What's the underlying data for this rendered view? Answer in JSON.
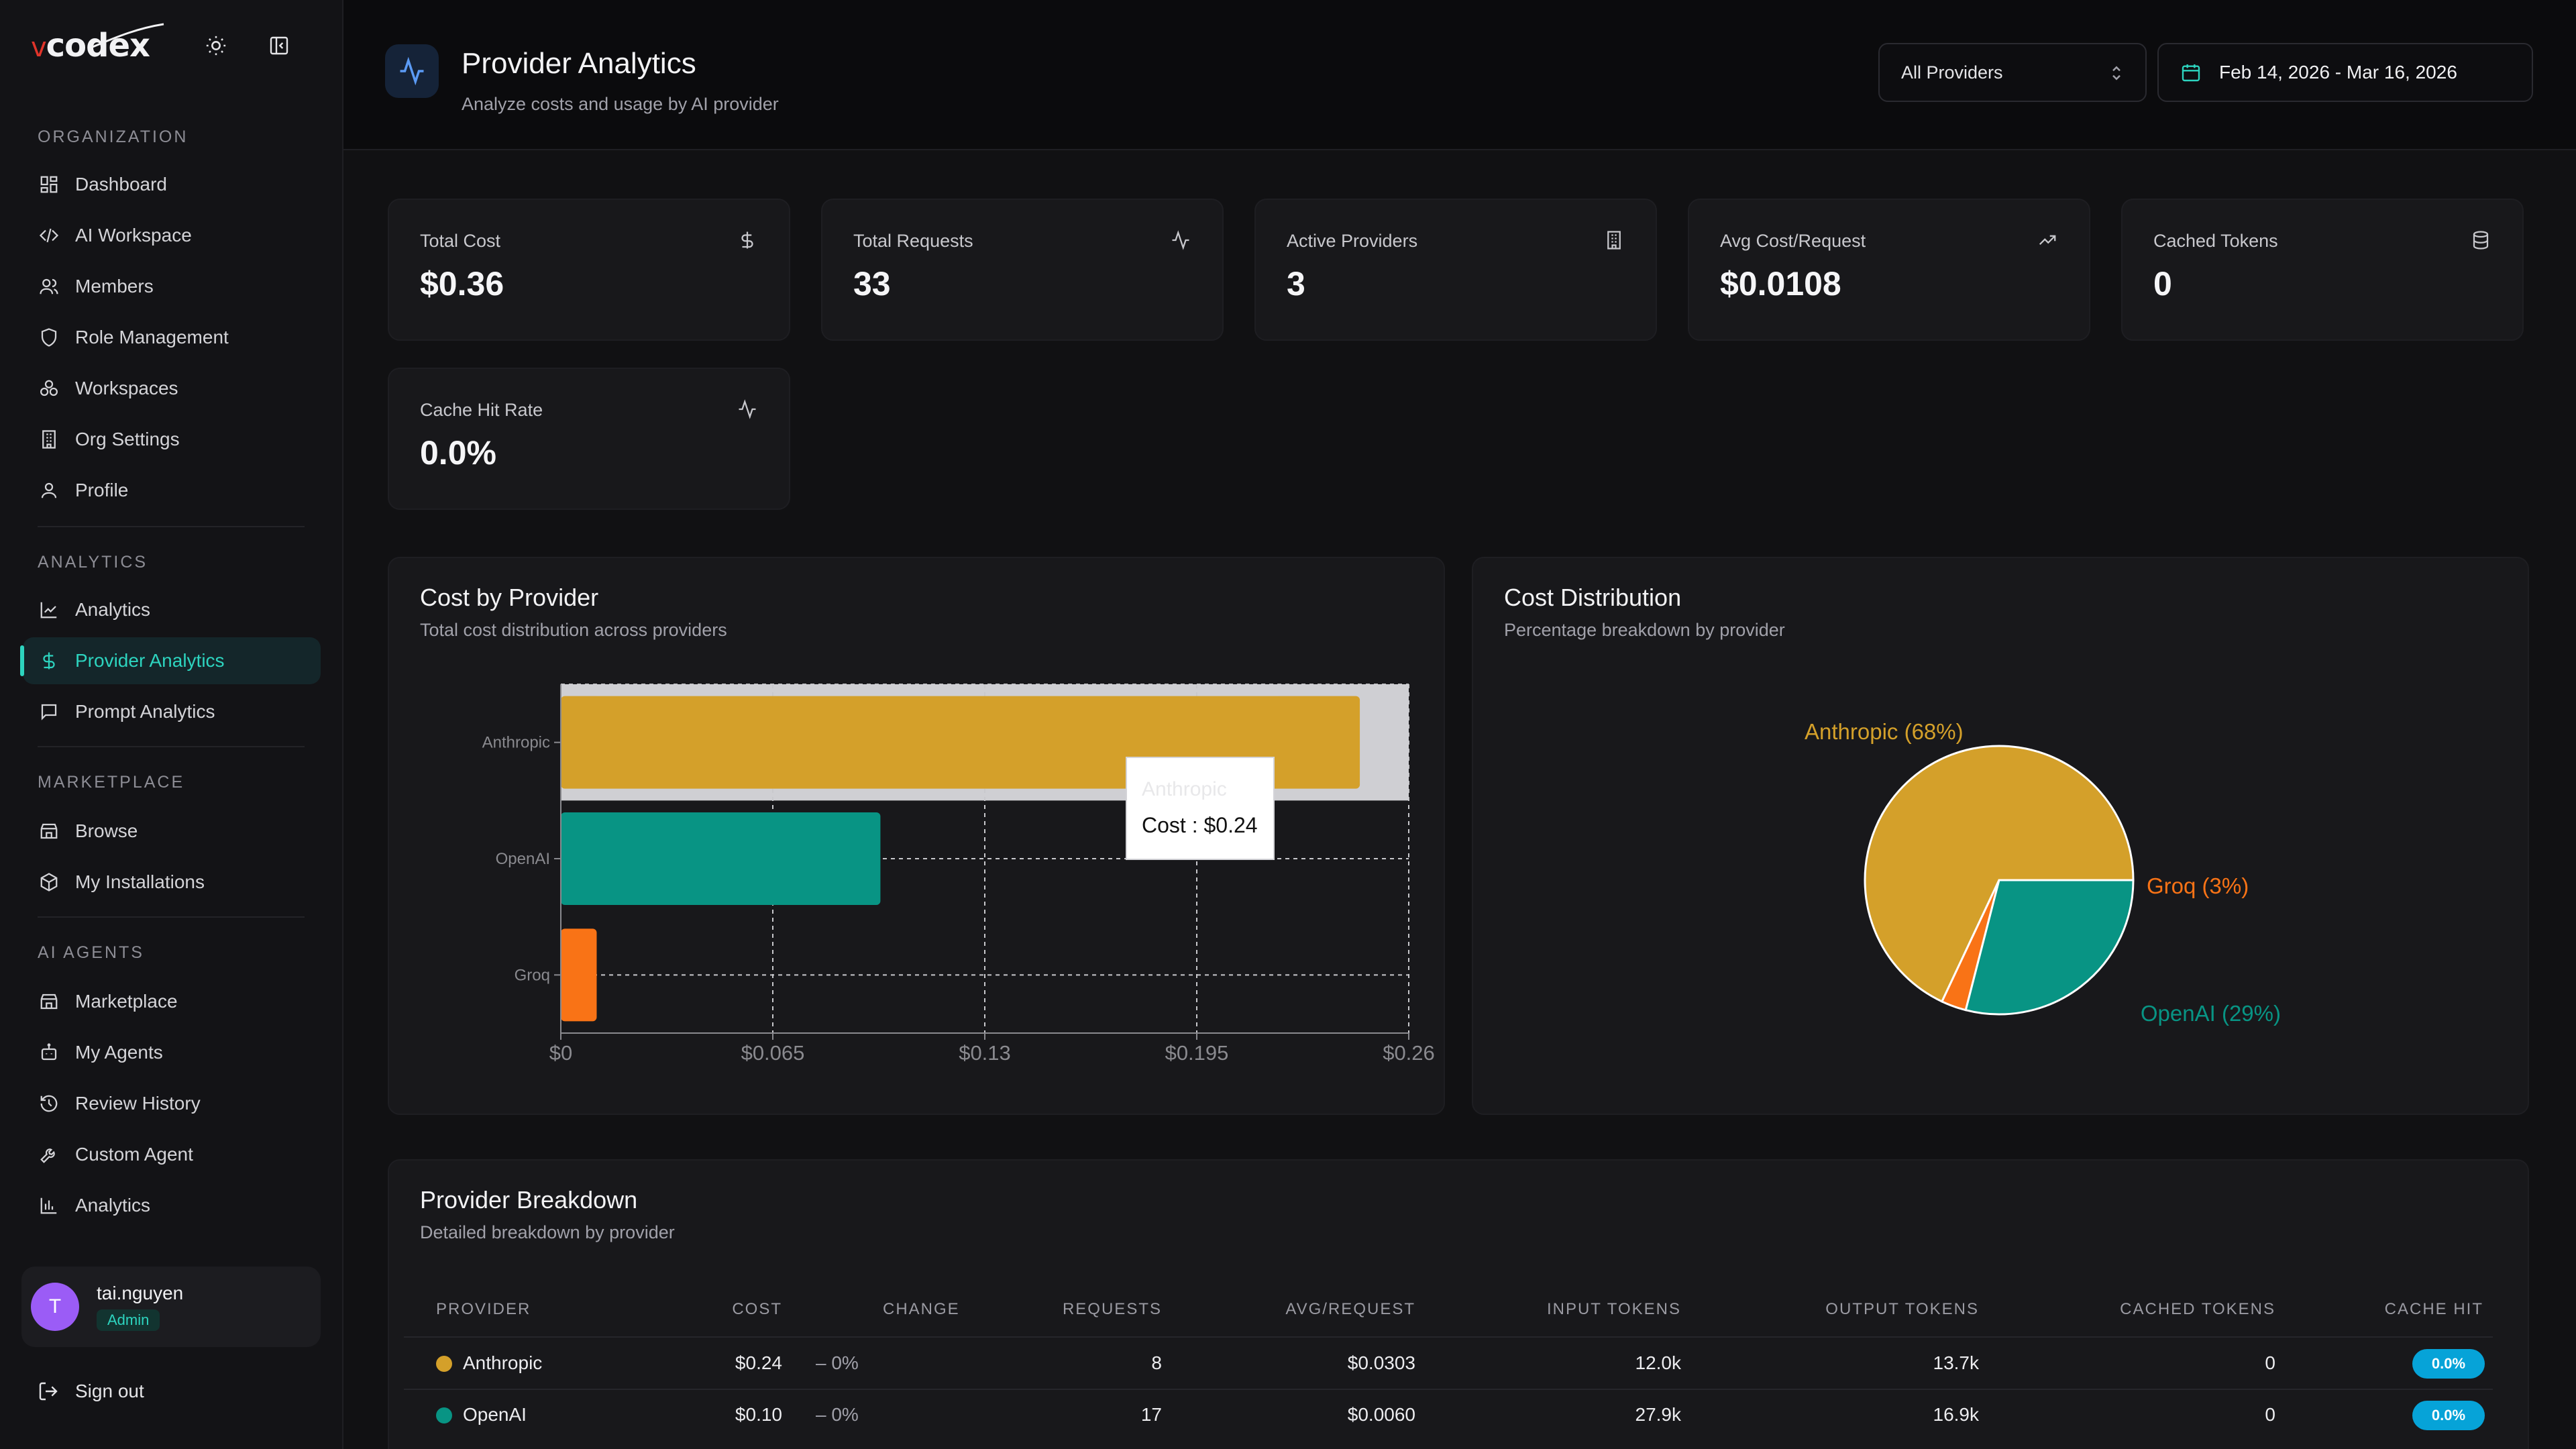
{
  "app": {
    "brand": "codex",
    "brand_prefix": "v"
  },
  "sidebar": {
    "sections": [
      {
        "label": "ORGANIZATION"
      },
      {
        "label": "ANALYTICS"
      },
      {
        "label": "MARKETPLACE"
      },
      {
        "label": "AI AGENTS"
      }
    ],
    "items": [
      {
        "label": "Dashboard",
        "icon": "dashboard-icon"
      },
      {
        "label": "AI Workspace",
        "icon": "code-icon"
      },
      {
        "label": "Members",
        "icon": "users-icon"
      },
      {
        "label": "Role Management",
        "icon": "shield-icon"
      },
      {
        "label": "Workspaces",
        "icon": "workspaces-icon"
      },
      {
        "label": "Org Settings",
        "icon": "building-icon"
      },
      {
        "label": "Profile",
        "icon": "user-icon"
      },
      {
        "label": "Analytics",
        "icon": "line-chart-icon"
      },
      {
        "label": "Provider Analytics",
        "icon": "dollar-icon",
        "active": true
      },
      {
        "label": "Prompt Analytics",
        "icon": "message-icon"
      },
      {
        "label": "Browse",
        "icon": "store-icon"
      },
      {
        "label": "My Installations",
        "icon": "package-icon"
      },
      {
        "label": "Marketplace",
        "icon": "store-icon"
      },
      {
        "label": "My Agents",
        "icon": "bot-icon"
      },
      {
        "label": "Review History",
        "icon": "history-icon"
      },
      {
        "label": "Custom Agent",
        "icon": "wrench-icon"
      },
      {
        "label": "Analytics",
        "icon": "bar-chart-icon"
      }
    ],
    "user": {
      "initial": "T",
      "name": "tai.nguyen",
      "role": "Admin"
    },
    "signout_label": "Sign out"
  },
  "header": {
    "title": "Provider Analytics",
    "subtitle": "Analyze costs and usage by AI provider",
    "provider_select": "All Providers",
    "date_range": "Feb 14, 2026 - Mar 16, 2026"
  },
  "stats": [
    {
      "label": "Total Cost",
      "value": "$0.36",
      "icon": "dollar-icon"
    },
    {
      "label": "Total Requests",
      "value": "33",
      "icon": "activity-icon"
    },
    {
      "label": "Active Providers",
      "value": "3",
      "icon": "building-icon"
    },
    {
      "label": "Avg Cost/Request",
      "value": "$0.0108",
      "icon": "trending-up-icon"
    },
    {
      "label": "Cached Tokens",
      "value": "0",
      "icon": "database-icon"
    },
    {
      "label": "Cache Hit Rate",
      "value": "0.0%",
      "icon": "activity-icon"
    }
  ],
  "cost_by_provider": {
    "title": "Cost by Provider",
    "subtitle": "Total cost distribution across providers",
    "tooltip": {
      "name": "Anthropic",
      "value": "Cost : $0.24"
    }
  },
  "cost_distribution": {
    "title": "Cost Distribution",
    "subtitle": "Percentage breakdown by provider"
  },
  "colors": {
    "anthropic": "#d4a02a",
    "openai": "#089484",
    "groq": "#f97316",
    "accent": "#2dd4bf"
  },
  "chart_data": [
    {
      "type": "bar",
      "orientation": "horizontal",
      "categories": [
        "Anthropic",
        "OpenAI",
        "Groq"
      ],
      "values": [
        0.245,
        0.098,
        0.011
      ],
      "xlim": [
        0,
        0.26
      ],
      "xticks": [
        "$0",
        "$0.065",
        "$0.13",
        "$0.195",
        "$0.26"
      ],
      "xtick_values": [
        0,
        0.065,
        0.13,
        0.195,
        0.26
      ],
      "grid": true,
      "colors": [
        "#d4a02a",
        "#089484",
        "#f97316"
      ]
    },
    {
      "type": "pie",
      "labels": [
        "Anthropic (68%)",
        "OpenAI (29%)",
        "Groq (3%)"
      ],
      "values": [
        68,
        29,
        3
      ],
      "colors": [
        "#d4a02a",
        "#089484",
        "#f97316"
      ]
    }
  ],
  "table": {
    "title": "Provider Breakdown",
    "subtitle": "Detailed breakdown by provider",
    "columns": [
      "PROVIDER",
      "COST",
      "CHANGE",
      "REQUESTS",
      "AVG/REQUEST",
      "INPUT TOKENS",
      "OUTPUT TOKENS",
      "CACHED TOKENS",
      "CACHE HIT"
    ],
    "rows": [
      {
        "provider": "Anthropic",
        "color": "#d4a02a",
        "cost": "$0.24",
        "change": "– 0%",
        "requests": "8",
        "avg": "$0.0303",
        "input": "12.0k",
        "output": "13.7k",
        "cached": "0",
        "hit": "0.0%"
      },
      {
        "provider": "OpenAI",
        "color": "#089484",
        "cost": "$0.10",
        "change": "– 0%",
        "requests": "17",
        "avg": "$0.0060",
        "input": "27.9k",
        "output": "16.9k",
        "cached": "0",
        "hit": "0.0%"
      }
    ]
  }
}
